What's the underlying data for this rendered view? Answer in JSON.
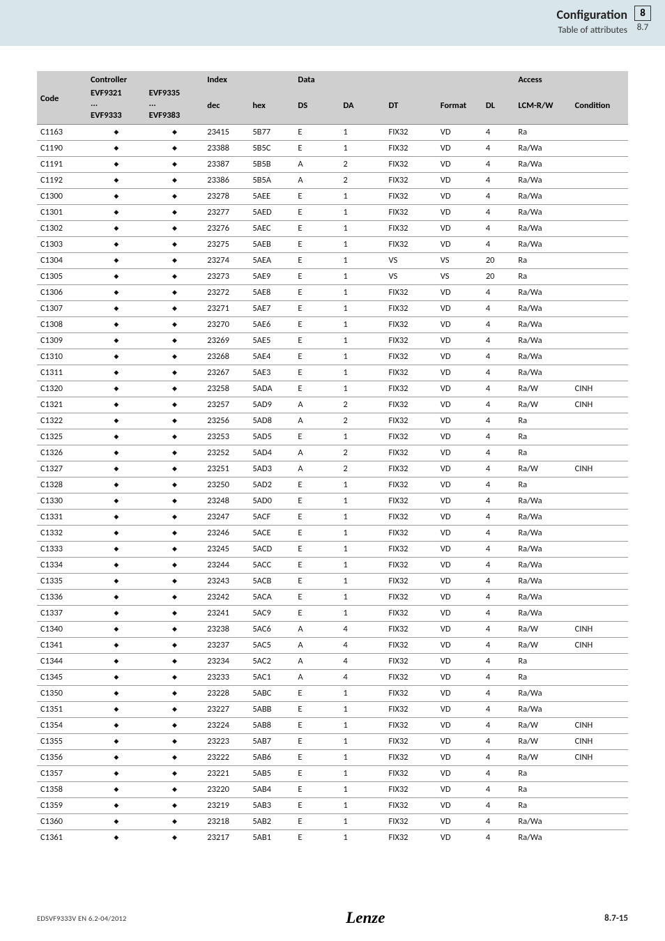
{
  "header": {
    "title": "Configuration",
    "subtitle": "Table of attributes",
    "chapter": "8",
    "section": "8.7"
  },
  "footer": {
    "doc_id": "EDSVF9333V  EN  6.2-04/2012",
    "brand": "Lenze",
    "page": "8.7-15"
  },
  "table": {
    "group_headers": {
      "code": "Code",
      "controller": "Controller",
      "index": "Index",
      "data": "Data",
      "access": "Access"
    },
    "sub_headers": {
      "evf9321": "EVF9321",
      "evf9335": "EVF9335",
      "dec": "dec",
      "hex": "hex",
      "ds": "DS",
      "da": "DA",
      "dt": "DT",
      "format": "Format",
      "dl": "DL",
      "lcm": "LCM-R/W",
      "condition": "Condition",
      "evf9333": "EVF9333",
      "evf9383": "EVF9383",
      "ellipsis": "..."
    },
    "rows": [
      {
        "code": "C1163",
        "c1": "◆",
        "c2": "◆",
        "dec": "23415",
        "hex": "5B77",
        "ds": "E",
        "da": "1",
        "dt": "FIX32",
        "fmt": "VD",
        "dl": "4",
        "lcm": "Ra",
        "cond": ""
      },
      {
        "code": "C1190",
        "c1": "◆",
        "c2": "◆",
        "dec": "23388",
        "hex": "5B5C",
        "ds": "E",
        "da": "1",
        "dt": "FIX32",
        "fmt": "VD",
        "dl": "4",
        "lcm": "Ra/Wa",
        "cond": ""
      },
      {
        "code": "C1191",
        "c1": "◆",
        "c2": "◆",
        "dec": "23387",
        "hex": "5B5B",
        "ds": "A",
        "da": "2",
        "dt": "FIX32",
        "fmt": "VD",
        "dl": "4",
        "lcm": "Ra/Wa",
        "cond": ""
      },
      {
        "code": "C1192",
        "c1": "◆",
        "c2": "◆",
        "dec": "23386",
        "hex": "5B5A",
        "ds": "A",
        "da": "2",
        "dt": "FIX32",
        "fmt": "VD",
        "dl": "4",
        "lcm": "Ra/Wa",
        "cond": ""
      },
      {
        "code": "C1300",
        "c1": "◆",
        "c2": "◆",
        "dec": "23278",
        "hex": "5AEE",
        "ds": "E",
        "da": "1",
        "dt": "FIX32",
        "fmt": "VD",
        "dl": "4",
        "lcm": "Ra/Wa",
        "cond": ""
      },
      {
        "code": "C1301",
        "c1": "◆",
        "c2": "◆",
        "dec": "23277",
        "hex": "5AED",
        "ds": "E",
        "da": "1",
        "dt": "FIX32",
        "fmt": "VD",
        "dl": "4",
        "lcm": "Ra/Wa",
        "cond": ""
      },
      {
        "code": "C1302",
        "c1": "◆",
        "c2": "◆",
        "dec": "23276",
        "hex": "5AEC",
        "ds": "E",
        "da": "1",
        "dt": "FIX32",
        "fmt": "VD",
        "dl": "4",
        "lcm": "Ra/Wa",
        "cond": ""
      },
      {
        "code": "C1303",
        "c1": "◆",
        "c2": "◆",
        "dec": "23275",
        "hex": "5AEB",
        "ds": "E",
        "da": "1",
        "dt": "FIX32",
        "fmt": "VD",
        "dl": "4",
        "lcm": "Ra/Wa",
        "cond": ""
      },
      {
        "code": "C1304",
        "c1": "◆",
        "c2": "◆",
        "dec": "23274",
        "hex": "5AEA",
        "ds": "E",
        "da": "1",
        "dt": "VS",
        "fmt": "VS",
        "dl": "20",
        "lcm": "Ra",
        "cond": ""
      },
      {
        "code": "C1305",
        "c1": "◆",
        "c2": "◆",
        "dec": "23273",
        "hex": "5AE9",
        "ds": "E",
        "da": "1",
        "dt": "VS",
        "fmt": "VS",
        "dl": "20",
        "lcm": "Ra",
        "cond": ""
      },
      {
        "code": "C1306",
        "c1": "◆",
        "c2": "◆",
        "dec": "23272",
        "hex": "5AE8",
        "ds": "E",
        "da": "1",
        "dt": "FIX32",
        "fmt": "VD",
        "dl": "4",
        "lcm": "Ra/Wa",
        "cond": ""
      },
      {
        "code": "C1307",
        "c1": "◆",
        "c2": "◆",
        "dec": "23271",
        "hex": "5AE7",
        "ds": "E",
        "da": "1",
        "dt": "FIX32",
        "fmt": "VD",
        "dl": "4",
        "lcm": "Ra/Wa",
        "cond": ""
      },
      {
        "code": "C1308",
        "c1": "◆",
        "c2": "◆",
        "dec": "23270",
        "hex": "5AE6",
        "ds": "E",
        "da": "1",
        "dt": "FIX32",
        "fmt": "VD",
        "dl": "4",
        "lcm": "Ra/Wa",
        "cond": ""
      },
      {
        "code": "C1309",
        "c1": "◆",
        "c2": "◆",
        "dec": "23269",
        "hex": "5AE5",
        "ds": "E",
        "da": "1",
        "dt": "FIX32",
        "fmt": "VD",
        "dl": "4",
        "lcm": "Ra/Wa",
        "cond": ""
      },
      {
        "code": "C1310",
        "c1": "◆",
        "c2": "◆",
        "dec": "23268",
        "hex": "5AE4",
        "ds": "E",
        "da": "1",
        "dt": "FIX32",
        "fmt": "VD",
        "dl": "4",
        "lcm": "Ra/Wa",
        "cond": ""
      },
      {
        "code": "C1311",
        "c1": "◆",
        "c2": "◆",
        "dec": "23267",
        "hex": "5AE3",
        "ds": "E",
        "da": "1",
        "dt": "FIX32",
        "fmt": "VD",
        "dl": "4",
        "lcm": "Ra/Wa",
        "cond": ""
      },
      {
        "code": "C1320",
        "c1": "◆",
        "c2": "◆",
        "dec": "23258",
        "hex": "5ADA",
        "ds": "E",
        "da": "1",
        "dt": "FIX32",
        "fmt": "VD",
        "dl": "4",
        "lcm": "Ra/W",
        "cond": "CINH"
      },
      {
        "code": "C1321",
        "c1": "◆",
        "c2": "◆",
        "dec": "23257",
        "hex": "5AD9",
        "ds": "A",
        "da": "2",
        "dt": "FIX32",
        "fmt": "VD",
        "dl": "4",
        "lcm": "Ra/W",
        "cond": "CINH"
      },
      {
        "code": "C1322",
        "c1": "◆",
        "c2": "◆",
        "dec": "23256",
        "hex": "5AD8",
        "ds": "A",
        "da": "2",
        "dt": "FIX32",
        "fmt": "VD",
        "dl": "4",
        "lcm": "Ra",
        "cond": ""
      },
      {
        "code": "C1325",
        "c1": "◆",
        "c2": "◆",
        "dec": "23253",
        "hex": "5AD5",
        "ds": "E",
        "da": "1",
        "dt": "FIX32",
        "fmt": "VD",
        "dl": "4",
        "lcm": "Ra",
        "cond": ""
      },
      {
        "code": "C1326",
        "c1": "◆",
        "c2": "◆",
        "dec": "23252",
        "hex": "5AD4",
        "ds": "A",
        "da": "2",
        "dt": "FIX32",
        "fmt": "VD",
        "dl": "4",
        "lcm": "Ra",
        "cond": ""
      },
      {
        "code": "C1327",
        "c1": "◆",
        "c2": "◆",
        "dec": "23251",
        "hex": "5AD3",
        "ds": "A",
        "da": "2",
        "dt": "FIX32",
        "fmt": "VD",
        "dl": "4",
        "lcm": "Ra/W",
        "cond": "CINH"
      },
      {
        "code": "C1328",
        "c1": "◆",
        "c2": "◆",
        "dec": "23250",
        "hex": "5AD2",
        "ds": "E",
        "da": "1",
        "dt": "FIX32",
        "fmt": "VD",
        "dl": "4",
        "lcm": "Ra",
        "cond": ""
      },
      {
        "code": "C1330",
        "c1": "◆",
        "c2": "◆",
        "dec": "23248",
        "hex": "5AD0",
        "ds": "E",
        "da": "1",
        "dt": "FIX32",
        "fmt": "VD",
        "dl": "4",
        "lcm": "Ra/Wa",
        "cond": ""
      },
      {
        "code": "C1331",
        "c1": "◆",
        "c2": "◆",
        "dec": "23247",
        "hex": "5ACF",
        "ds": "E",
        "da": "1",
        "dt": "FIX32",
        "fmt": "VD",
        "dl": "4",
        "lcm": "Ra/Wa",
        "cond": ""
      },
      {
        "code": "C1332",
        "c1": "◆",
        "c2": "◆",
        "dec": "23246",
        "hex": "5ACE",
        "ds": "E",
        "da": "1",
        "dt": "FIX32",
        "fmt": "VD",
        "dl": "4",
        "lcm": "Ra/Wa",
        "cond": ""
      },
      {
        "code": "C1333",
        "c1": "◆",
        "c2": "◆",
        "dec": "23245",
        "hex": "5ACD",
        "ds": "E",
        "da": "1",
        "dt": "FIX32",
        "fmt": "VD",
        "dl": "4",
        "lcm": "Ra/Wa",
        "cond": ""
      },
      {
        "code": "C1334",
        "c1": "◆",
        "c2": "◆",
        "dec": "23244",
        "hex": "5ACC",
        "ds": "E",
        "da": "1",
        "dt": "FIX32",
        "fmt": "VD",
        "dl": "4",
        "lcm": "Ra/Wa",
        "cond": ""
      },
      {
        "code": "C1335",
        "c1": "◆",
        "c2": "◆",
        "dec": "23243",
        "hex": "5ACB",
        "ds": "E",
        "da": "1",
        "dt": "FIX32",
        "fmt": "VD",
        "dl": "4",
        "lcm": "Ra/Wa",
        "cond": ""
      },
      {
        "code": "C1336",
        "c1": "◆",
        "c2": "◆",
        "dec": "23242",
        "hex": "5ACA",
        "ds": "E",
        "da": "1",
        "dt": "FIX32",
        "fmt": "VD",
        "dl": "4",
        "lcm": "Ra/Wa",
        "cond": ""
      },
      {
        "code": "C1337",
        "c1": "◆",
        "c2": "◆",
        "dec": "23241",
        "hex": "5AC9",
        "ds": "E",
        "da": "1",
        "dt": "FIX32",
        "fmt": "VD",
        "dl": "4",
        "lcm": "Ra/Wa",
        "cond": ""
      },
      {
        "code": "C1340",
        "c1": "◆",
        "c2": "◆",
        "dec": "23238",
        "hex": "5AC6",
        "ds": "A",
        "da": "4",
        "dt": "FIX32",
        "fmt": "VD",
        "dl": "4",
        "lcm": "Ra/W",
        "cond": "CINH"
      },
      {
        "code": "C1341",
        "c1": "◆",
        "c2": "◆",
        "dec": "23237",
        "hex": "5AC5",
        "ds": "A",
        "da": "4",
        "dt": "FIX32",
        "fmt": "VD",
        "dl": "4",
        "lcm": "Ra/W",
        "cond": "CINH"
      },
      {
        "code": "C1344",
        "c1": "◆",
        "c2": "◆",
        "dec": "23234",
        "hex": "5AC2",
        "ds": "A",
        "da": "4",
        "dt": "FIX32",
        "fmt": "VD",
        "dl": "4",
        "lcm": "Ra",
        "cond": ""
      },
      {
        "code": "C1345",
        "c1": "◆",
        "c2": "◆",
        "dec": "23233",
        "hex": "5AC1",
        "ds": "A",
        "da": "4",
        "dt": "FIX32",
        "fmt": "VD",
        "dl": "4",
        "lcm": "Ra",
        "cond": ""
      },
      {
        "code": "C1350",
        "c1": "◆",
        "c2": "◆",
        "dec": "23228",
        "hex": "5ABC",
        "ds": "E",
        "da": "1",
        "dt": "FIX32",
        "fmt": "VD",
        "dl": "4",
        "lcm": "Ra/Wa",
        "cond": ""
      },
      {
        "code": "C1351",
        "c1": "◆",
        "c2": "◆",
        "dec": "23227",
        "hex": "5ABB",
        "ds": "E",
        "da": "1",
        "dt": "FIX32",
        "fmt": "VD",
        "dl": "4",
        "lcm": "Ra/Wa",
        "cond": ""
      },
      {
        "code": "C1354",
        "c1": "◆",
        "c2": "◆",
        "dec": "23224",
        "hex": "5AB8",
        "ds": "E",
        "da": "1",
        "dt": "FIX32",
        "fmt": "VD",
        "dl": "4",
        "lcm": "Ra/W",
        "cond": "CINH"
      },
      {
        "code": "C1355",
        "c1": "◆",
        "c2": "◆",
        "dec": "23223",
        "hex": "5AB7",
        "ds": "E",
        "da": "1",
        "dt": "FIX32",
        "fmt": "VD",
        "dl": "4",
        "lcm": "Ra/W",
        "cond": "CINH"
      },
      {
        "code": "C1356",
        "c1": "◆",
        "c2": "◆",
        "dec": "23222",
        "hex": "5AB6",
        "ds": "E",
        "da": "1",
        "dt": "FIX32",
        "fmt": "VD",
        "dl": "4",
        "lcm": "Ra/W",
        "cond": "CINH"
      },
      {
        "code": "C1357",
        "c1": "◆",
        "c2": "◆",
        "dec": "23221",
        "hex": "5AB5",
        "ds": "E",
        "da": "1",
        "dt": "FIX32",
        "fmt": "VD",
        "dl": "4",
        "lcm": "Ra",
        "cond": ""
      },
      {
        "code": "C1358",
        "c1": "◆",
        "c2": "◆",
        "dec": "23220",
        "hex": "5AB4",
        "ds": "E",
        "da": "1",
        "dt": "FIX32",
        "fmt": "VD",
        "dl": "4",
        "lcm": "Ra",
        "cond": ""
      },
      {
        "code": "C1359",
        "c1": "◆",
        "c2": "◆",
        "dec": "23219",
        "hex": "5AB3",
        "ds": "E",
        "da": "1",
        "dt": "FIX32",
        "fmt": "VD",
        "dl": "4",
        "lcm": "Ra",
        "cond": ""
      },
      {
        "code": "C1360",
        "c1": "◆",
        "c2": "◆",
        "dec": "23218",
        "hex": "5AB2",
        "ds": "E",
        "da": "1",
        "dt": "FIX32",
        "fmt": "VD",
        "dl": "4",
        "lcm": "Ra/Wa",
        "cond": ""
      },
      {
        "code": "C1361",
        "c1": "◆",
        "c2": "◆",
        "dec": "23217",
        "hex": "5AB1",
        "ds": "E",
        "da": "1",
        "dt": "FIX32",
        "fmt": "VD",
        "dl": "4",
        "lcm": "Ra/Wa",
        "cond": ""
      }
    ]
  }
}
